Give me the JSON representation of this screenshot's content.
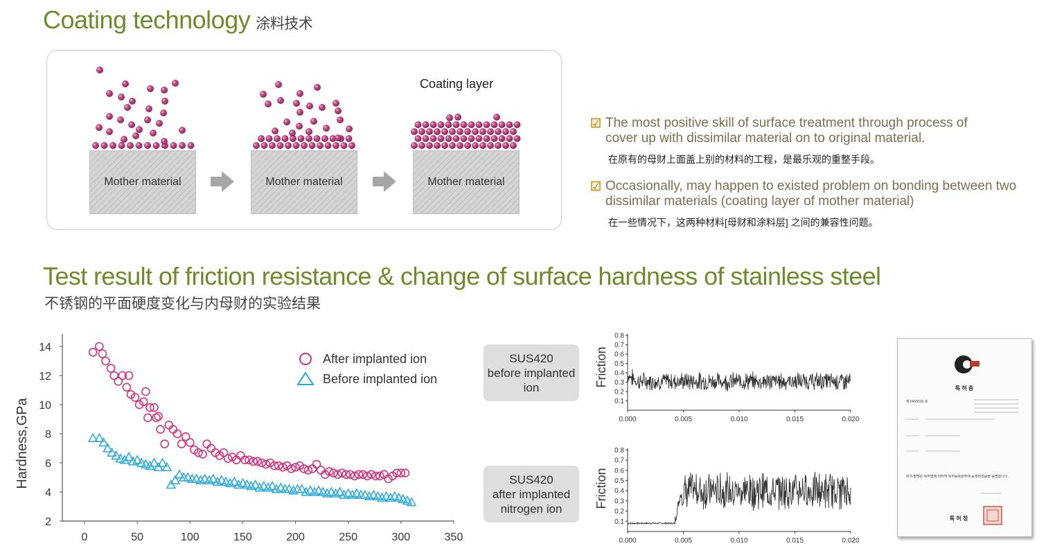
{
  "coating": {
    "title": "Coating technology",
    "title_zh": "涂料技术",
    "mother_label": "Mother material",
    "coating_layer_label": "Coating layer",
    "colors": {
      "particle": "#b13a72",
      "particle_highlight": "#e6a5c4",
      "arrow": "#a6a6a6",
      "title": "#6f8a2a"
    }
  },
  "notes": [
    {
      "en_line1": "The most positive skill of surface treatment through process of",
      "en_line2": "cover up with dissimilar material on to original material.",
      "zh": "在原有的母财上面盖上别的材料的工程，是最乐观的重整手段。"
    },
    {
      "en_line1": "Occasionally, may happen to existed problem on bonding between two",
      "en_line2": "dissimilar materials (coating layer of mother material)",
      "zh": "在一些情况下，这两种材料[母财和涂料层] 之间的兼容性问题。"
    }
  ],
  "test": {
    "title": "Test result of friction resistance & change of surface hardness of stainless steel",
    "title_zh": "不锈钢的平面硬度变化与内母财的实验结果"
  },
  "sus_before": {
    "line1": "SUS420",
    "line2": "before implanted",
    "line3": "ion"
  },
  "sus_after": {
    "line1": "SUS420",
    "line2": "after implanted",
    "line3": "nitrogen ion"
  },
  "chart_data": [
    {
      "type": "scatter",
      "title": "",
      "xlabel": "",
      "ylabel": "Hardness,GPa",
      "xlim": [
        0,
        350
      ],
      "ylim": [
        2,
        15
      ],
      "xticks": [
        0,
        50,
        100,
        150,
        200,
        250,
        300,
        350
      ],
      "yticks": [
        2,
        4,
        6,
        8,
        10,
        12,
        14
      ],
      "legend_position": "top-right",
      "series": [
        {
          "name": "After implanted ion",
          "marker": "circle",
          "color": "#d0347a",
          "x": [
            8,
            14,
            17,
            20,
            25,
            28,
            32,
            36,
            40,
            42,
            44,
            48,
            52,
            56,
            58,
            60,
            62,
            66,
            68,
            70,
            72,
            76,
            80,
            84,
            88,
            92,
            96,
            100,
            104,
            108,
            112,
            116,
            120,
            124,
            128,
            132,
            136,
            140,
            144,
            148,
            152,
            156,
            160,
            164,
            168,
            172,
            176,
            180,
            184,
            188,
            192,
            196,
            200,
            204,
            208,
            212,
            216,
            220,
            224,
            228,
            232,
            236,
            240,
            244,
            248,
            252,
            256,
            260,
            264,
            268,
            272,
            276,
            280,
            284,
            288,
            292,
            296,
            300,
            304
          ],
          "y": [
            13.6,
            14.0,
            13.5,
            13.0,
            12.5,
            12.0,
            11.6,
            12.0,
            11.2,
            12.0,
            10.7,
            10.5,
            10.0,
            10.2,
            10.9,
            9.1,
            9.8,
            9.8,
            9.1,
            9.2,
            8.3,
            7.3,
            8.6,
            8.3,
            8.0,
            7.3,
            7.8,
            7.4,
            6.9,
            6.7,
            6.6,
            7.3,
            7.0,
            6.7,
            6.5,
            6.7,
            6.3,
            6.4,
            6.2,
            6.5,
            6.2,
            6.2,
            6.1,
            6.1,
            6.0,
            5.9,
            6.0,
            5.8,
            5.8,
            5.7,
            5.8,
            5.6,
            5.7,
            5.8,
            5.6,
            5.5,
            5.6,
            5.9,
            5.5,
            5.2,
            5.4,
            5.3,
            5.2,
            5.3,
            5.2,
            5.2,
            5.1,
            5.2,
            5.2,
            5.1,
            5.2,
            5.1,
            5.1,
            5.2,
            4.9,
            5.1,
            5.3,
            5.3,
            5.3
          ]
        },
        {
          "name": "Before implanted ion",
          "marker": "triangle",
          "color": "#27a8d8",
          "x": [
            8,
            14,
            18,
            22,
            26,
            30,
            34,
            38,
            42,
            46,
            50,
            54,
            58,
            62,
            66,
            70,
            74,
            78,
            82,
            86,
            90,
            94,
            98,
            102,
            106,
            110,
            114,
            118,
            122,
            126,
            130,
            134,
            138,
            142,
            146,
            150,
            154,
            158,
            162,
            166,
            170,
            174,
            178,
            182,
            186,
            190,
            194,
            198,
            202,
            206,
            210,
            214,
            218,
            222,
            226,
            230,
            234,
            238,
            242,
            246,
            250,
            254,
            258,
            262,
            266,
            270,
            274,
            278,
            282,
            286,
            290,
            294,
            298,
            302,
            306,
            310
          ],
          "y": [
            7.7,
            7.7,
            7.4,
            7.0,
            6.7,
            6.5,
            6.3,
            6.2,
            6.4,
            6.1,
            6.2,
            6.0,
            5.9,
            5.8,
            6.0,
            5.7,
            6.0,
            5.7,
            4.5,
            4.8,
            5.2,
            5.0,
            5.0,
            4.9,
            4.9,
            4.8,
            4.9,
            4.8,
            4.9,
            4.7,
            4.8,
            4.7,
            4.6,
            4.7,
            4.5,
            4.6,
            4.5,
            4.4,
            4.5,
            4.3,
            4.4,
            4.3,
            4.4,
            4.2,
            4.3,
            4.2,
            4.2,
            4.1,
            4.2,
            4.2,
            4.0,
            4.1,
            4.0,
            4.1,
            4.0,
            3.9,
            4.0,
            3.9,
            4.0,
            3.8,
            3.9,
            3.8,
            3.9,
            3.8,
            3.8,
            3.7,
            3.8,
            3.7,
            3.6,
            3.7,
            3.6,
            3.7,
            3.6,
            3.5,
            3.4,
            3.3
          ]
        }
      ]
    },
    {
      "type": "line",
      "title": "",
      "ylabel": "Friction",
      "xlim": [
        0,
        0.02
      ],
      "ylim": [
        0,
        0.8
      ],
      "xticks": [
        "0.000",
        "0.005",
        "0.010",
        "0.015",
        "0.020"
      ],
      "yticks": [
        "0.1",
        "0.2",
        "0.3",
        "0.4",
        "0.5",
        "0.6",
        "0.7",
        "0.8"
      ],
      "color": "#333333",
      "summary": {
        "mean": 0.31,
        "amplitude": 0.08,
        "initial": 0.38
      }
    },
    {
      "type": "line",
      "title": "",
      "ylabel": "Friction",
      "xlim": [
        0,
        0.02
      ],
      "ylim": [
        0,
        0.8
      ],
      "xticks": [
        "0.000",
        "0.005",
        "0.010",
        "0.015",
        "0.020"
      ],
      "yticks": [
        "0.1",
        "0.2",
        "0.3",
        "0.4",
        "0.5",
        "0.6",
        "0.7",
        "0.8"
      ],
      "color": "#333333",
      "summary": {
        "initial_level": 0.08,
        "rise_start": 0.0042,
        "rise_end": 0.0048,
        "mean_after": 0.4,
        "amplitude_after": 0.15
      }
    }
  ],
  "certificate": {
    "title": "특 허 증",
    "number": "제 0456536 호",
    "issuer": "특 허 청",
    "footer": "위의 발명은 특허법에 의하여 특허등록원부에 등록되었음을 증명합니다."
  }
}
